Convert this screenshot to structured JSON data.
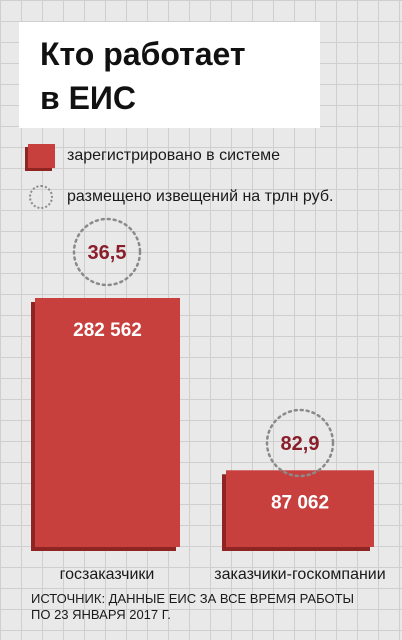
{
  "header": {
    "title_line1": "Кто работает",
    "title_line2": "в ЕИС"
  },
  "legend": {
    "registered": "зарегистрировано в системе",
    "notices": "размещено извещений на трлн руб."
  },
  "colors": {
    "bar": "#c8403e",
    "bar_shadow": "#8f2523",
    "circle_value": "#8a1f2b",
    "circle_border": "#8a8a8a"
  },
  "chart_data": {
    "type": "bar",
    "categories": [
      "госзаказчики",
      "заказчики-госкомпании"
    ],
    "series": [
      {
        "name": "зарегистрировано в системе",
        "values": [
          282562,
          87062
        ],
        "labels": [
          "282 562",
          "87 062"
        ]
      },
      {
        "name": "размещено извещений на трлн руб.",
        "values": [
          36.5,
          82.9
        ],
        "labels": [
          "36,5",
          "82,9"
        ]
      }
    ],
    "title": "Кто работает в ЕИС",
    "ylim": [
      0,
      282562
    ]
  },
  "source": {
    "text": "Источник: данные ЕИС за все время работы по 23 января 2017 г."
  }
}
